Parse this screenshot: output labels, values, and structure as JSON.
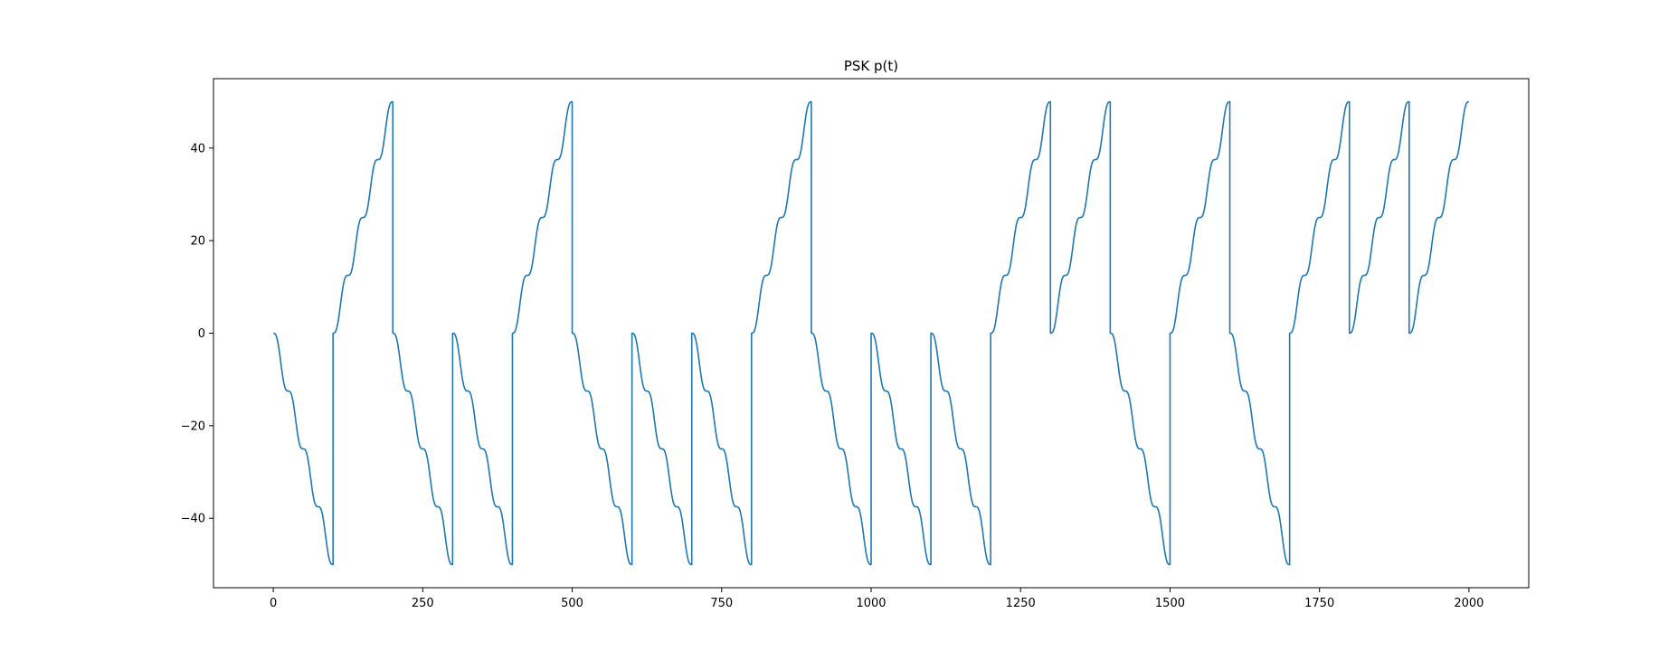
{
  "chart_data": {
    "type": "line",
    "title": "PSK p(t)",
    "xlabel": "",
    "ylabel": "",
    "xlim": [
      -100,
      2100
    ],
    "ylim": [
      -55,
      55
    ],
    "x_ticks": [
      0,
      250,
      500,
      750,
      1000,
      1250,
      1500,
      1750,
      2000
    ],
    "x_tick_labels": [
      "0",
      "250",
      "500",
      "750",
      "1000",
      "1250",
      "1500",
      "1750",
      "2000"
    ],
    "y_ticks": [
      -40,
      -20,
      0,
      20,
      40
    ],
    "y_tick_labels": [
      "−40",
      "−20",
      "0",
      "20",
      "40"
    ],
    "grid": false,
    "legend": "none",
    "series": [
      {
        "color": "#1f77b4",
        "segment_length": 100,
        "segment_start_x": [
          0,
          100,
          200,
          300,
          400,
          500,
          600,
          700,
          800,
          900,
          1000,
          1100,
          1200,
          1300,
          1400,
          1500,
          1600,
          1700,
          1800,
          1900
        ],
        "segment_direction": [
          -1,
          1,
          -1,
          -1,
          1,
          -1,
          -1,
          -1,
          1,
          -1,
          -1,
          -1,
          1,
          1,
          -1,
          1,
          -1,
          1,
          1,
          1
        ],
        "segment_end_magnitude": 50,
        "steps_per_segment": 4,
        "x_end": 2000
      }
    ]
  }
}
